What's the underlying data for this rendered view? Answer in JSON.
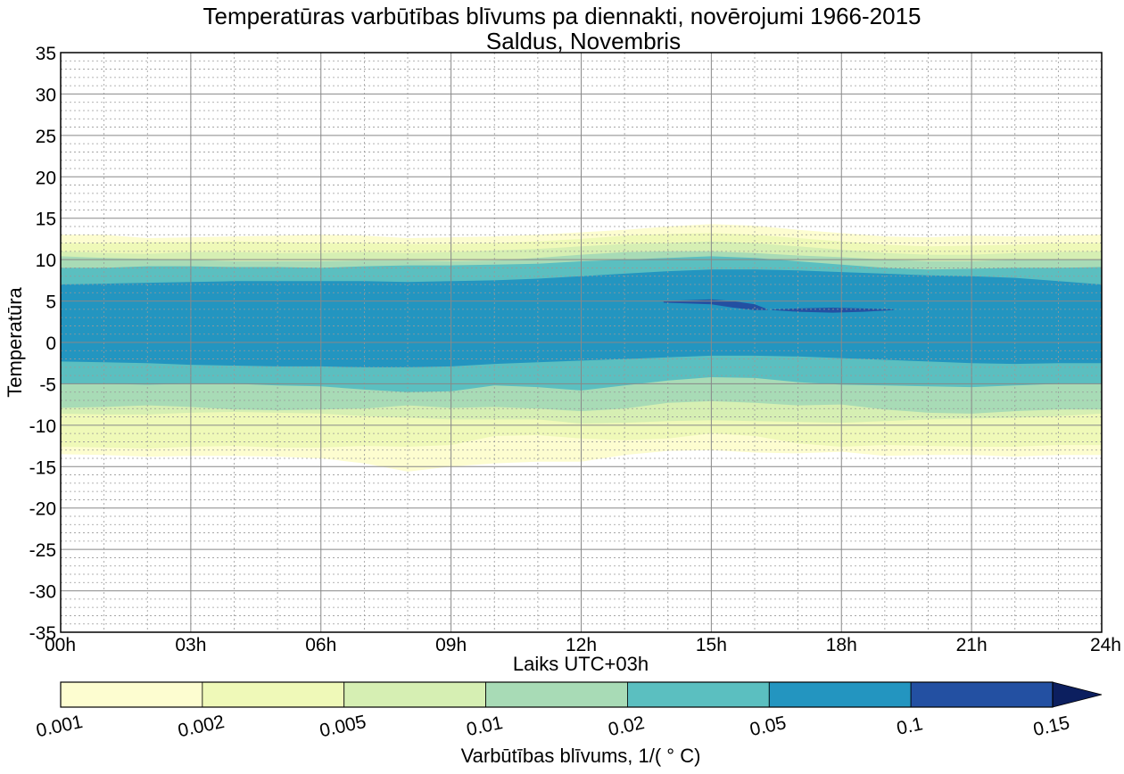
{
  "chart_data": {
    "type": "heatmap",
    "subtype": "filled-contour",
    "title": "Temperatūras varbūtības blīvums pa diennakti, novērojumi 1966-2015",
    "subtitle": "Saldus, Novembris",
    "xlabel": "Laiks UTC+03h",
    "ylabel": "Temperatūra",
    "xlim": [
      0,
      24
    ],
    "ylim": [
      -35,
      35
    ],
    "x_ticks": [
      0,
      3,
      6,
      9,
      12,
      15,
      18,
      21,
      24
    ],
    "x_tick_labels": [
      "00h",
      "03h",
      "06h",
      "09h",
      "12h",
      "15h",
      "18h",
      "21h",
      "24h"
    ],
    "y_ticks": [
      35,
      30,
      25,
      20,
      15,
      10,
      5,
      0,
      -5,
      -10,
      -15,
      -20,
      -25,
      -30,
      -35
    ],
    "y_tick_labels": [
      "35",
      "30",
      "25",
      "20",
      "15",
      "10",
      "5",
      "0",
      "-5",
      "-10",
      "-15",
      "-20",
      "-25",
      "-30",
      "-35"
    ],
    "grid": {
      "major": true,
      "minor": true,
      "x_minor_step": 1,
      "y_minor_step": 1
    },
    "colorbar": {
      "label": "Varbūtības blīvums, 1/(°C)",
      "label_display": "Varbūtības blīvums, 1/( ° C)",
      "levels": [
        0.001,
        0.002,
        0.005,
        0.01,
        0.02,
        0.05,
        0.1,
        0.15
      ],
      "tick_labels": [
        "0.001",
        "0.002",
        "0.005",
        "0.01",
        "0.02",
        "0.05",
        "0.1",
        "0.15"
      ],
      "colors": [
        "#fdfdd0",
        "#eff9b8",
        "#d6efb3",
        "#a8dbb6",
        "#5bbfc0",
        "#2395c0",
        "#2350a2",
        "#0c1f5f"
      ],
      "extend": "max",
      "placement": "bottom"
    },
    "band_hours": [
      0,
      1,
      2,
      3,
      4,
      5,
      6,
      7,
      8,
      9,
      10,
      11,
      12,
      13,
      14,
      15,
      16,
      17,
      18,
      19,
      20,
      21,
      22,
      23,
      24
    ],
    "contour_bounds": [
      {
        "level": 0.001,
        "upper": [
          13.0,
          13.0,
          12.6,
          12.7,
          12.8,
          12.9,
          13.0,
          12.9,
          12.6,
          12.7,
          12.8,
          13.0,
          13.3,
          13.6,
          14.0,
          14.3,
          14.1,
          13.6,
          13.2,
          12.8,
          12.7,
          12.9,
          12.8,
          12.9,
          13.0
        ],
        "lower": [
          -13.5,
          -13.6,
          -13.8,
          -13.7,
          -13.7,
          -13.8,
          -14.0,
          -14.6,
          -15.6,
          -15.0,
          -14.6,
          -14.4,
          -14.4,
          -13.6,
          -13.1,
          -13.0,
          -13.3,
          -13.4,
          -13.2,
          -13.7,
          -13.6,
          -13.6,
          -13.8,
          -13.6,
          -13.6
        ]
      },
      {
        "level": 0.002,
        "upper": [
          12.0,
          12.0,
          12.1,
          12.1,
          12.2,
          12.1,
          12.0,
          12.0,
          11.9,
          11.9,
          12.0,
          12.2,
          12.5,
          12.9,
          13.1,
          13.2,
          13.0,
          12.6,
          12.2,
          11.8,
          11.6,
          11.7,
          11.8,
          12.0,
          12.0
        ],
        "lower": [
          -12.6,
          -12.7,
          -12.8,
          -12.6,
          -12.5,
          -12.7,
          -12.7,
          -12.5,
          -12.6,
          -12.4,
          -11.3,
          -11.2,
          -11.6,
          -11.8,
          -11.6,
          -11.0,
          -11.3,
          -12.2,
          -12.6,
          -12.4,
          -12.5,
          -12.6,
          -12.6,
          -12.4,
          -12.4
        ]
      },
      {
        "level": 0.005,
        "upper": [
          11.0,
          10.8,
          10.7,
          10.9,
          10.9,
          10.8,
          10.8,
          10.9,
          10.8,
          10.9,
          11.1,
          11.3,
          11.6,
          11.9,
          12.0,
          12.2,
          12.0,
          11.6,
          11.2,
          10.8,
          10.6,
          10.6,
          10.8,
          10.9,
          11.0
        ],
        "lower": [
          -8.6,
          -8.7,
          -8.7,
          -8.5,
          -8.4,
          -8.5,
          -8.6,
          -8.9,
          -9.1,
          -9.3,
          -9.3,
          -9.3,
          -9.8,
          -9.7,
          -9.5,
          -9.4,
          -9.5,
          -9.6,
          -9.7,
          -9.5,
          -9.3,
          -9.2,
          -9.1,
          -8.9,
          -8.6
        ]
      },
      {
        "level": 0.01,
        "upper": [
          10.4,
          10.2,
          10.1,
          10.0,
          9.8,
          9.8,
          9.8,
          9.9,
          9.9,
          9.8,
          9.9,
          10.2,
          10.6,
          10.9,
          11.0,
          11.0,
          10.8,
          10.5,
          10.3,
          10.0,
          9.8,
          9.8,
          10.0,
          10.0,
          10.0
        ],
        "lower": [
          -7.9,
          -7.8,
          -7.6,
          -7.8,
          -8.1,
          -8.2,
          -8.1,
          -8.0,
          -7.6,
          -7.9,
          -7.8,
          -8.0,
          -8.3,
          -8.0,
          -7.3,
          -7.1,
          -7.3,
          -7.6,
          -7.5,
          -8.1,
          -8.5,
          -8.6,
          -8.3,
          -8.1,
          -8.1
        ]
      },
      {
        "level": 0.02,
        "upper": [
          9.0,
          9.0,
          9.2,
          9.2,
          9.1,
          9.1,
          9.0,
          9.2,
          9.3,
          9.3,
          9.4,
          9.5,
          9.8,
          10.0,
          10.2,
          10.4,
          10.2,
          9.8,
          9.4,
          9.0,
          8.8,
          8.9,
          9.0,
          9.0,
          9.1
        ],
        "lower": [
          -5.0,
          -5.0,
          -5.1,
          -5.0,
          -5.0,
          -5.2,
          -5.3,
          -5.7,
          -6.0,
          -5.9,
          -5.2,
          -5.4,
          -5.8,
          -5.2,
          -4.6,
          -4.2,
          -4.3,
          -4.8,
          -5.1,
          -5.2,
          -5.3,
          -5.4,
          -5.2,
          -5.0,
          -5.0
        ]
      },
      {
        "level": 0.05,
        "upper": [
          7.0,
          7.1,
          7.2,
          7.3,
          7.4,
          7.4,
          7.4,
          7.4,
          7.3,
          7.4,
          7.5,
          7.7,
          8.0,
          8.3,
          8.6,
          8.8,
          8.8,
          8.7,
          8.5,
          8.3,
          8.1,
          8.0,
          7.8,
          7.4,
          7.0
        ],
        "lower": [
          -2.3,
          -2.4,
          -2.5,
          -2.7,
          -2.8,
          -2.9,
          -2.9,
          -3.0,
          -3.0,
          -2.9,
          -2.6,
          -2.4,
          -2.2,
          -2.0,
          -1.8,
          -1.6,
          -1.6,
          -1.7,
          -1.9,
          -2.1,
          -2.3,
          -2.5,
          -2.6,
          -2.5,
          -2.5
        ]
      }
    ],
    "high_density_regions": [
      {
        "level": 0.1,
        "hours": [
          13.9,
          14.5,
          15.0,
          15.5,
          16.0,
          16.3
        ],
        "upper": [
          5.0,
          5.1,
          5.2,
          5.0,
          4.6,
          4.0
        ],
        "lower": [
          4.8,
          4.7,
          4.6,
          4.2,
          3.9,
          3.9
        ]
      },
      {
        "level": 0.1,
        "hours": [
          16.4,
          17.0,
          17.8,
          18.5,
          19.2
        ],
        "upper": [
          4.0,
          4.1,
          4.2,
          4.1,
          4.0
        ],
        "lower": [
          3.9,
          3.7,
          3.6,
          3.7,
          3.9
        ]
      }
    ]
  }
}
